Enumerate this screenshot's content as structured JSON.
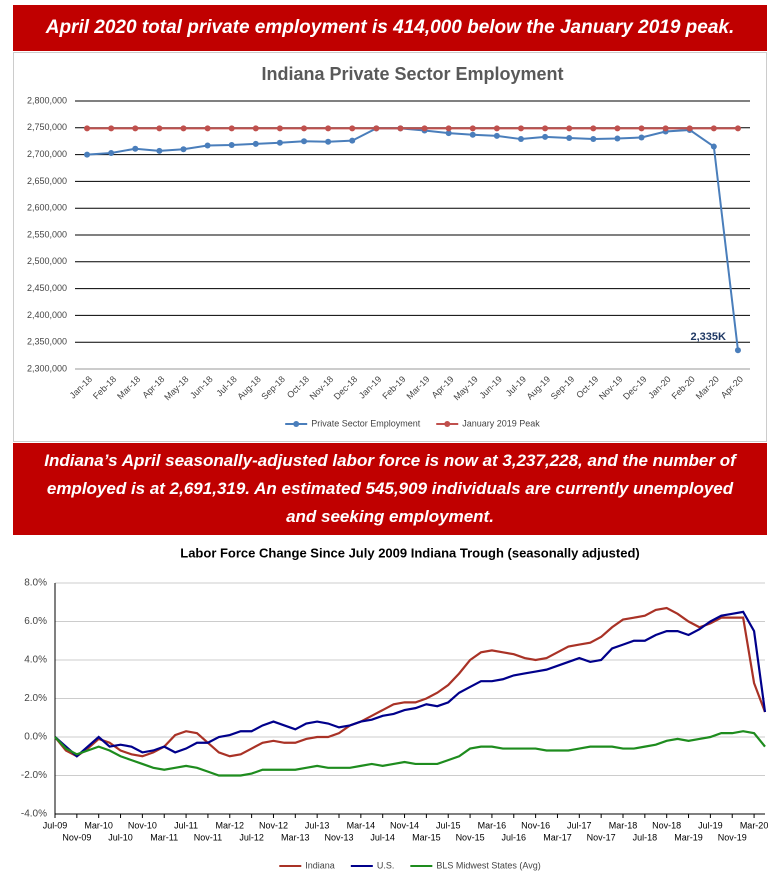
{
  "banners": [
    "April 2020 total private employment is 414,000 below the January 2019 peak.",
    "Indiana’s April seasonally-adjusted labor force is now at 3,237,228, and the number of employed is at 2,691,319. An estimated 545,909 individuals are currently unemployed and seeking employment."
  ],
  "chart_data": [
    {
      "type": "line",
      "title": "Indiana Private Sector Employment",
      "categories": [
        "Jan-18",
        "Feb-18",
        "Mar-18",
        "Apr-18",
        "May-18",
        "Jun-18",
        "Jul-18",
        "Aug-18",
        "Sep-18",
        "Oct-18",
        "Nov-18",
        "Dec-18",
        "Jan-19",
        "Feb-19",
        "Mar-19",
        "Apr-19",
        "May-19",
        "Jun-19",
        "Jul-19",
        "Aug-19",
        "Sep-19",
        "Oct-19",
        "Nov-19",
        "Dec-19",
        "Jan-20",
        "Feb-20",
        "Mar-20",
        "Apr-20"
      ],
      "series": [
        {
          "name": "Private Sector Employment",
          "color": "#4a7ebb",
          "values": [
            2700000,
            2703000,
            2711000,
            2707000,
            2710000,
            2717000,
            2718000,
            2720000,
            2722000,
            2725000,
            2724000,
            2726000,
            2749000,
            2749000,
            2745000,
            2740000,
            2737000,
            2735000,
            2729000,
            2733000,
            2731000,
            2729000,
            2730000,
            2732000,
            2743000,
            2746000,
            2715000,
            2335000
          ],
          "value_labels": [
            null,
            null,
            null,
            null,
            null,
            null,
            null,
            null,
            null,
            null,
            null,
            null,
            null,
            null,
            null,
            null,
            null,
            null,
            null,
            null,
            null,
            null,
            null,
            null,
            null,
            null,
            null,
            "2,335K"
          ]
        },
        {
          "name": "January 2019 Peak",
          "color": "#c0504d",
          "values": [
            2749000,
            2749000,
            2749000,
            2749000,
            2749000,
            2749000,
            2749000,
            2749000,
            2749000,
            2749000,
            2749000,
            2749000,
            2749000,
            2749000,
            2749000,
            2749000,
            2749000,
            2749000,
            2749000,
            2749000,
            2749000,
            2749000,
            2749000,
            2749000,
            2749000,
            2749000,
            2749000,
            2749000
          ]
        }
      ],
      "ylim": [
        2300000,
        2800000
      ],
      "yticks": [
        {
          "value": 2300000,
          "label": "2,300,000"
        },
        {
          "value": 2350000,
          "label": "2,350,000"
        },
        {
          "value": 2400000,
          "label": "2,400,000"
        },
        {
          "value": 2450000,
          "label": "2,450,000"
        },
        {
          "value": 2500000,
          "label": "2,500,000"
        },
        {
          "value": 2550000,
          "label": "2,550,000"
        },
        {
          "value": 2600000,
          "label": "2,600,000"
        },
        {
          "value": 2650000,
          "label": "2,650,000"
        },
        {
          "value": 2700000,
          "label": "2,700,000"
        },
        {
          "value": 2750000,
          "label": "2,750,000"
        },
        {
          "value": 2800000,
          "label": "2,800,000"
        }
      ],
      "grid": true,
      "markers": true,
      "legend": "bottom"
    },
    {
      "type": "line",
      "title": "Labor Force Change Since July 2009 Indiana Trough (seasonally adjusted)",
      "categories": [
        "Jul-09",
        null,
        "Nov-09",
        null,
        "Mar-10",
        null,
        "Jul-10",
        null,
        "Nov-10",
        null,
        "Mar-11",
        null,
        "Jul-11",
        null,
        "Nov-11",
        null,
        "Mar-12",
        null,
        "Jul-12",
        null,
        "Nov-12",
        null,
        "Mar-13",
        null,
        "Jul-13",
        null,
        "Nov-13",
        null,
        "Mar-14",
        null,
        "Jul-14",
        null,
        "Nov-14",
        null,
        "Mar-15",
        null,
        "Jul-15",
        null,
        "Nov-15",
        null,
        "Mar-16",
        null,
        "Jul-16",
        null,
        "Nov-16",
        null,
        "Mar-17",
        null,
        "Jul-17",
        null,
        "Nov-17",
        null,
        "Mar-18",
        null,
        "Jul-18",
        null,
        "Nov-18",
        null,
        "Mar-19",
        null,
        "Jul-19",
        null,
        "Nov-19",
        null,
        "Mar-20",
        null
      ],
      "series": [
        {
          "name": "Indiana",
          "color": "#a93226",
          "values": [
            0.0,
            -0.7,
            -1.0,
            -0.6,
            -0.1,
            -0.3,
            -0.7,
            -0.9,
            -1.0,
            -0.8,
            -0.5,
            0.1,
            0.3,
            0.2,
            -0.3,
            -0.8,
            -1.0,
            -0.9,
            -0.6,
            -0.3,
            -0.2,
            -0.3,
            -0.3,
            -0.1,
            0.0,
            0.0,
            0.2,
            0.6,
            0.8,
            1.1,
            1.4,
            1.7,
            1.8,
            1.8,
            2.0,
            2.3,
            2.7,
            3.3,
            4.0,
            4.4,
            4.5,
            4.4,
            4.3,
            4.1,
            4.0,
            4.1,
            4.4,
            4.7,
            4.8,
            4.9,
            5.2,
            5.7,
            6.1,
            6.2,
            6.3,
            6.6,
            6.7,
            6.4,
            6.0,
            5.7,
            5.9,
            6.2,
            6.2,
            6.2,
            2.8,
            1.3
          ]
        },
        {
          "name": "U.S.",
          "color": "#00008b",
          "values": [
            0.0,
            -0.5,
            -1.0,
            -0.5,
            0.0,
            -0.5,
            -0.4,
            -0.5,
            -0.8,
            -0.7,
            -0.5,
            -0.8,
            -0.6,
            -0.3,
            -0.3,
            0.0,
            0.1,
            0.3,
            0.3,
            0.6,
            0.8,
            0.6,
            0.4,
            0.7,
            0.8,
            0.7,
            0.5,
            0.6,
            0.8,
            0.9,
            1.1,
            1.2,
            1.4,
            1.5,
            1.7,
            1.6,
            1.8,
            2.3,
            2.6,
            2.9,
            2.9,
            3.0,
            3.2,
            3.3,
            3.4,
            3.5,
            3.7,
            3.9,
            4.1,
            3.9,
            4.0,
            4.6,
            4.8,
            5.0,
            5.0,
            5.3,
            5.5,
            5.5,
            5.3,
            5.6,
            6.0,
            6.3,
            6.4,
            6.5,
            5.5,
            1.3
          ]
        },
        {
          "name": "BLS Midwest States (Avg)",
          "color": "#1e8c1e",
          "values": [
            0.0,
            -0.6,
            -0.9,
            -0.7,
            -0.5,
            -0.7,
            -1.0,
            -1.2,
            -1.4,
            -1.6,
            -1.7,
            -1.6,
            -1.5,
            -1.6,
            -1.8,
            -2.0,
            -2.0,
            -2.0,
            -1.9,
            -1.7,
            -1.7,
            -1.7,
            -1.7,
            -1.6,
            -1.5,
            -1.6,
            -1.6,
            -1.6,
            -1.5,
            -1.4,
            -1.5,
            -1.4,
            -1.3,
            -1.4,
            -1.4,
            -1.4,
            -1.2,
            -1.0,
            -0.6,
            -0.5,
            -0.5,
            -0.6,
            -0.6,
            -0.6,
            -0.6,
            -0.7,
            -0.7,
            -0.7,
            -0.6,
            -0.5,
            -0.5,
            -0.5,
            -0.6,
            -0.6,
            -0.5,
            -0.4,
            -0.2,
            -0.1,
            -0.2,
            -0.1,
            0.0,
            0.2,
            0.2,
            0.3,
            0.2,
            -0.5
          ]
        }
      ],
      "ylim": [
        -4,
        8
      ],
      "yticks": [
        {
          "value": -4,
          "label": "-4.0%"
        },
        {
          "value": -2,
          "label": "-2.0%"
        },
        {
          "value": 0,
          "label": "0.0%"
        },
        {
          "value": 2,
          "label": "2.0%"
        },
        {
          "value": 4,
          "label": "4.0%"
        },
        {
          "value": 6,
          "label": "6.0%"
        },
        {
          "value": 8,
          "label": "8.0%"
        }
      ],
      "grid": true,
      "markers": false,
      "legend": "bottom"
    }
  ]
}
